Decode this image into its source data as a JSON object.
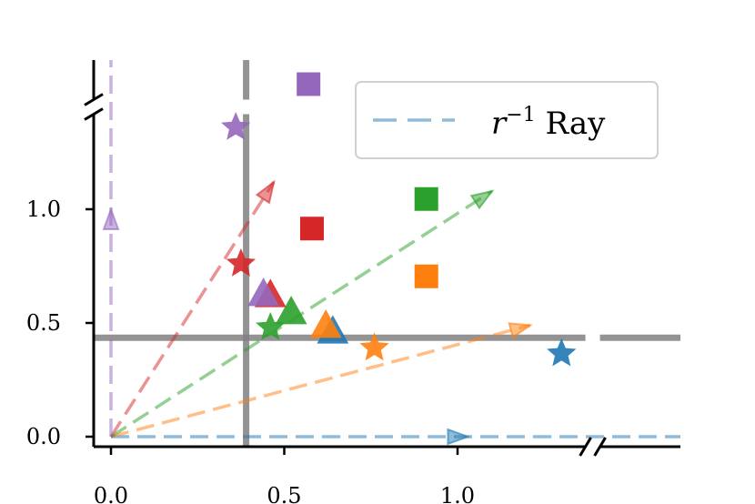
{
  "chart_data": {
    "type": "scatter",
    "title": "",
    "xlabel": "",
    "ylabel": "",
    "xlim": [
      -0.05,
      1.62
    ],
    "ylim": [
      -0.05,
      1.62
    ],
    "x_ticks": [
      {
        "value": 0.0,
        "label": "0.0"
      },
      {
        "value": 0.5,
        "label": "0.5"
      },
      {
        "value": 1.0,
        "label": "1.0"
      }
    ],
    "y_ticks": [
      {
        "value": 0.0,
        "label": "0.0"
      },
      {
        "value": 0.5,
        "label": "0.5"
      },
      {
        "value": 1.0,
        "label": "1.0"
      }
    ],
    "axis_breaks": {
      "x": 1.39,
      "y": 1.45
    },
    "grid": false,
    "legend": {
      "position": "top-right",
      "entries": [
        {
          "label_main": "r",
          "label_sup": "−1",
          "label_rest": " Ray",
          "color": "#1f77b4",
          "style": "dashed"
        }
      ]
    },
    "reference_lines": {
      "vertical_x": 0.39,
      "horizontal_y": 0.435,
      "color": "#808080"
    },
    "rays": [
      {
        "color": "#1f77b4",
        "end": [
          1.03,
          0.0
        ],
        "line_to": 1.62
      },
      {
        "color": "#ff7f0e",
        "end": [
          1.21,
          0.49
        ],
        "line_to": 1.21
      },
      {
        "color": "#2ca02c",
        "end": [
          1.1,
          1.08
        ],
        "line_to": 1.1
      },
      {
        "color": "#d62728",
        "end": [
          0.47,
          1.12
        ],
        "line_to": 0.47
      },
      {
        "color": "#9467bd",
        "end": [
          0.0,
          1.0
        ],
        "line_to": 1.62
      }
    ],
    "series": [
      {
        "color": "#1f77b4",
        "square": null,
        "triangle": [
          0.64,
          0.46
        ],
        "star": [
          1.3,
          0.365
        ]
      },
      {
        "color": "#ff7f0e",
        "square": [
          0.91,
          0.705
        ],
        "triangle": [
          0.62,
          0.485
        ],
        "star": [
          0.76,
          0.39
        ]
      },
      {
        "color": "#2ca02c",
        "square": [
          0.91,
          1.045
        ],
        "triangle": [
          0.52,
          0.545
        ],
        "star": [
          0.46,
          0.48
        ]
      },
      {
        "color": "#d62728",
        "square": [
          0.58,
          0.915
        ],
        "triangle": [
          0.46,
          0.62
        ],
        "star": [
          0.375,
          0.76
        ]
      },
      {
        "color": "#9467bd",
        "square": [
          0.57,
          1.55
        ],
        "triangle": [
          0.44,
          0.625
        ],
        "star": [
          0.36,
          1.36
        ]
      }
    ]
  }
}
